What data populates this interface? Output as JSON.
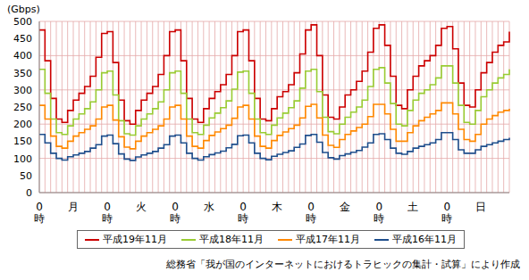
{
  "chart_data": {
    "type": "line",
    "y_label": "(Gbps)",
    "annotations": [
      "総務省「我が国のインターネットにおけるトラヒックの集計・試算」により作成"
    ],
    "categories": [
      "0時",
      null,
      null,
      null,
      null,
      null,
      "月",
      null,
      null,
      null,
      null,
      null,
      "0時",
      null,
      null,
      null,
      null,
      null,
      "火",
      null,
      null,
      null,
      null,
      null,
      "0時",
      null,
      null,
      null,
      null,
      null,
      "水",
      null,
      null,
      null,
      null,
      null,
      "0時",
      null,
      null,
      null,
      null,
      null,
      "木",
      null,
      null,
      null,
      null,
      null,
      "0時",
      null,
      null,
      null,
      null,
      null,
      "金",
      null,
      null,
      null,
      null,
      null,
      "0時",
      null,
      null,
      null,
      null,
      null,
      "土",
      null,
      null,
      null,
      null,
      null,
      "0時",
      null,
      null,
      null,
      null,
      null,
      "日",
      null,
      null,
      null,
      null,
      null
    ],
    "ylim": [
      0,
      500
    ],
    "yticks": [
      0,
      50,
      100,
      150,
      200,
      250,
      300,
      350,
      400,
      450,
      500
    ],
    "grid": true,
    "legend": "bottom",
    "line_style": "step",
    "series": [
      {
        "name": "平成19年11月",
        "color": "#cc0000",
        "values": [
          475,
          385,
          275,
          215,
          205,
          240,
          270,
          290,
          310,
          340,
          395,
          465,
          470,
          380,
          270,
          210,
          200,
          240,
          270,
          290,
          310,
          345,
          400,
          470,
          475,
          385,
          275,
          215,
          205,
          245,
          275,
          295,
          315,
          345,
          400,
          470,
          475,
          385,
          275,
          215,
          210,
          245,
          280,
          295,
          315,
          350,
          405,
          475,
          490,
          400,
          285,
          220,
          215,
          250,
          285,
          300,
          325,
          355,
          410,
          480,
          490,
          430,
          340,
          255,
          245,
          300,
          340,
          370,
          385,
          400,
          430,
          480,
          485,
          420,
          320,
          255,
          250,
          300,
          350,
          380,
          410,
          430,
          440,
          470
        ]
      },
      {
        "name": "平成18年11月",
        "color": "#99cc33",
        "values": [
          360,
          290,
          215,
          175,
          170,
          195,
          215,
          230,
          245,
          265,
          300,
          350,
          355,
          285,
          210,
          172,
          168,
          195,
          215,
          230,
          245,
          265,
          300,
          350,
          355,
          290,
          215,
          175,
          170,
          197,
          218,
          232,
          248,
          268,
          302,
          352,
          355,
          290,
          215,
          175,
          170,
          197,
          218,
          232,
          248,
          268,
          305,
          355,
          360,
          295,
          220,
          178,
          172,
          200,
          220,
          235,
          250,
          270,
          310,
          360,
          365,
          320,
          260,
          200,
          195,
          240,
          270,
          290,
          300,
          315,
          335,
          370,
          370,
          320,
          255,
          205,
          200,
          240,
          280,
          300,
          320,
          335,
          345,
          360
        ]
      },
      {
        "name": "平成17年11月",
        "color": "#ff8800",
        "values": [
          255,
          215,
          165,
          135,
          130,
          150,
          165,
          175,
          185,
          195,
          215,
          250,
          255,
          212,
          163,
          133,
          128,
          150,
          165,
          175,
          185,
          195,
          215,
          250,
          255,
          215,
          165,
          135,
          130,
          152,
          167,
          177,
          187,
          197,
          217,
          250,
          255,
          215,
          165,
          135,
          130,
          152,
          167,
          177,
          187,
          197,
          218,
          252,
          258,
          218,
          168,
          138,
          132,
          155,
          170,
          180,
          190,
          200,
          222,
          258,
          258,
          230,
          185,
          150,
          150,
          175,
          195,
          210,
          220,
          230,
          240,
          262,
          262,
          230,
          185,
          155,
          150,
          170,
          200,
          215,
          225,
          235,
          240,
          245
        ]
      },
      {
        "name": "平成16年11月",
        "color": "#1f4e8c",
        "values": [
          170,
          145,
          115,
          100,
          95,
          105,
          110,
          115,
          120,
          130,
          140,
          165,
          168,
          143,
          113,
          98,
          94,
          104,
          110,
          115,
          120,
          130,
          140,
          165,
          168,
          145,
          115,
          100,
          95,
          105,
          111,
          116,
          121,
          131,
          141,
          166,
          168,
          145,
          115,
          100,
          96,
          106,
          112,
          117,
          122,
          132,
          142,
          167,
          170,
          147,
          117,
          102,
          98,
          108,
          113,
          118,
          123,
          133,
          145,
          170,
          172,
          155,
          130,
          115,
          112,
          120,
          130,
          135,
          140,
          145,
          155,
          175,
          175,
          155,
          125,
          115,
          115,
          125,
          135,
          140,
          145,
          150,
          155,
          160
        ]
      }
    ]
  }
}
